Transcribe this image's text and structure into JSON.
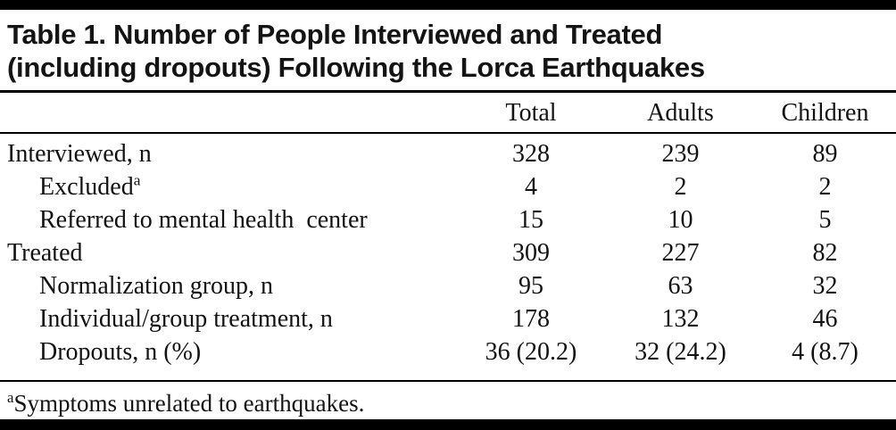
{
  "page": {
    "title_line1": "Table 1. Number of People Interviewed and Treated",
    "title_line2": "(including dropouts) Following the Lorca Earthquakes"
  },
  "table": {
    "columns": {
      "total": "Total",
      "adults": "Adults",
      "children": "Children"
    },
    "rows": [
      {
        "label": "Interviewed, n",
        "sup": "",
        "values": [
          "328",
          "239",
          "89"
        ]
      },
      {
        "label": "Excluded",
        "sup": "a",
        "values": [
          "4",
          "2",
          "2"
        ]
      },
      {
        "label": "Referred to mental health  center",
        "sup": "",
        "values": [
          "15",
          "10",
          "5"
        ]
      },
      {
        "label": "Treated",
        "sup": "",
        "values": [
          "309",
          "227",
          "82"
        ]
      },
      {
        "label": "Normalization group, n",
        "sup": "",
        "values": [
          "95",
          "63",
          "32"
        ]
      },
      {
        "label": "Individual/group treatment, n",
        "sup": "",
        "values": [
          "178",
          "132",
          "46"
        ]
      },
      {
        "label": "Dropouts, n (%)",
        "sup": "",
        "values": [
          "36 (20.2)",
          "32 (24.2)",
          "4 (8.7)"
        ]
      }
    ],
    "footnote": {
      "sup": "a",
      "text": "Symptoms unrelated to earthquakes."
    }
  }
}
